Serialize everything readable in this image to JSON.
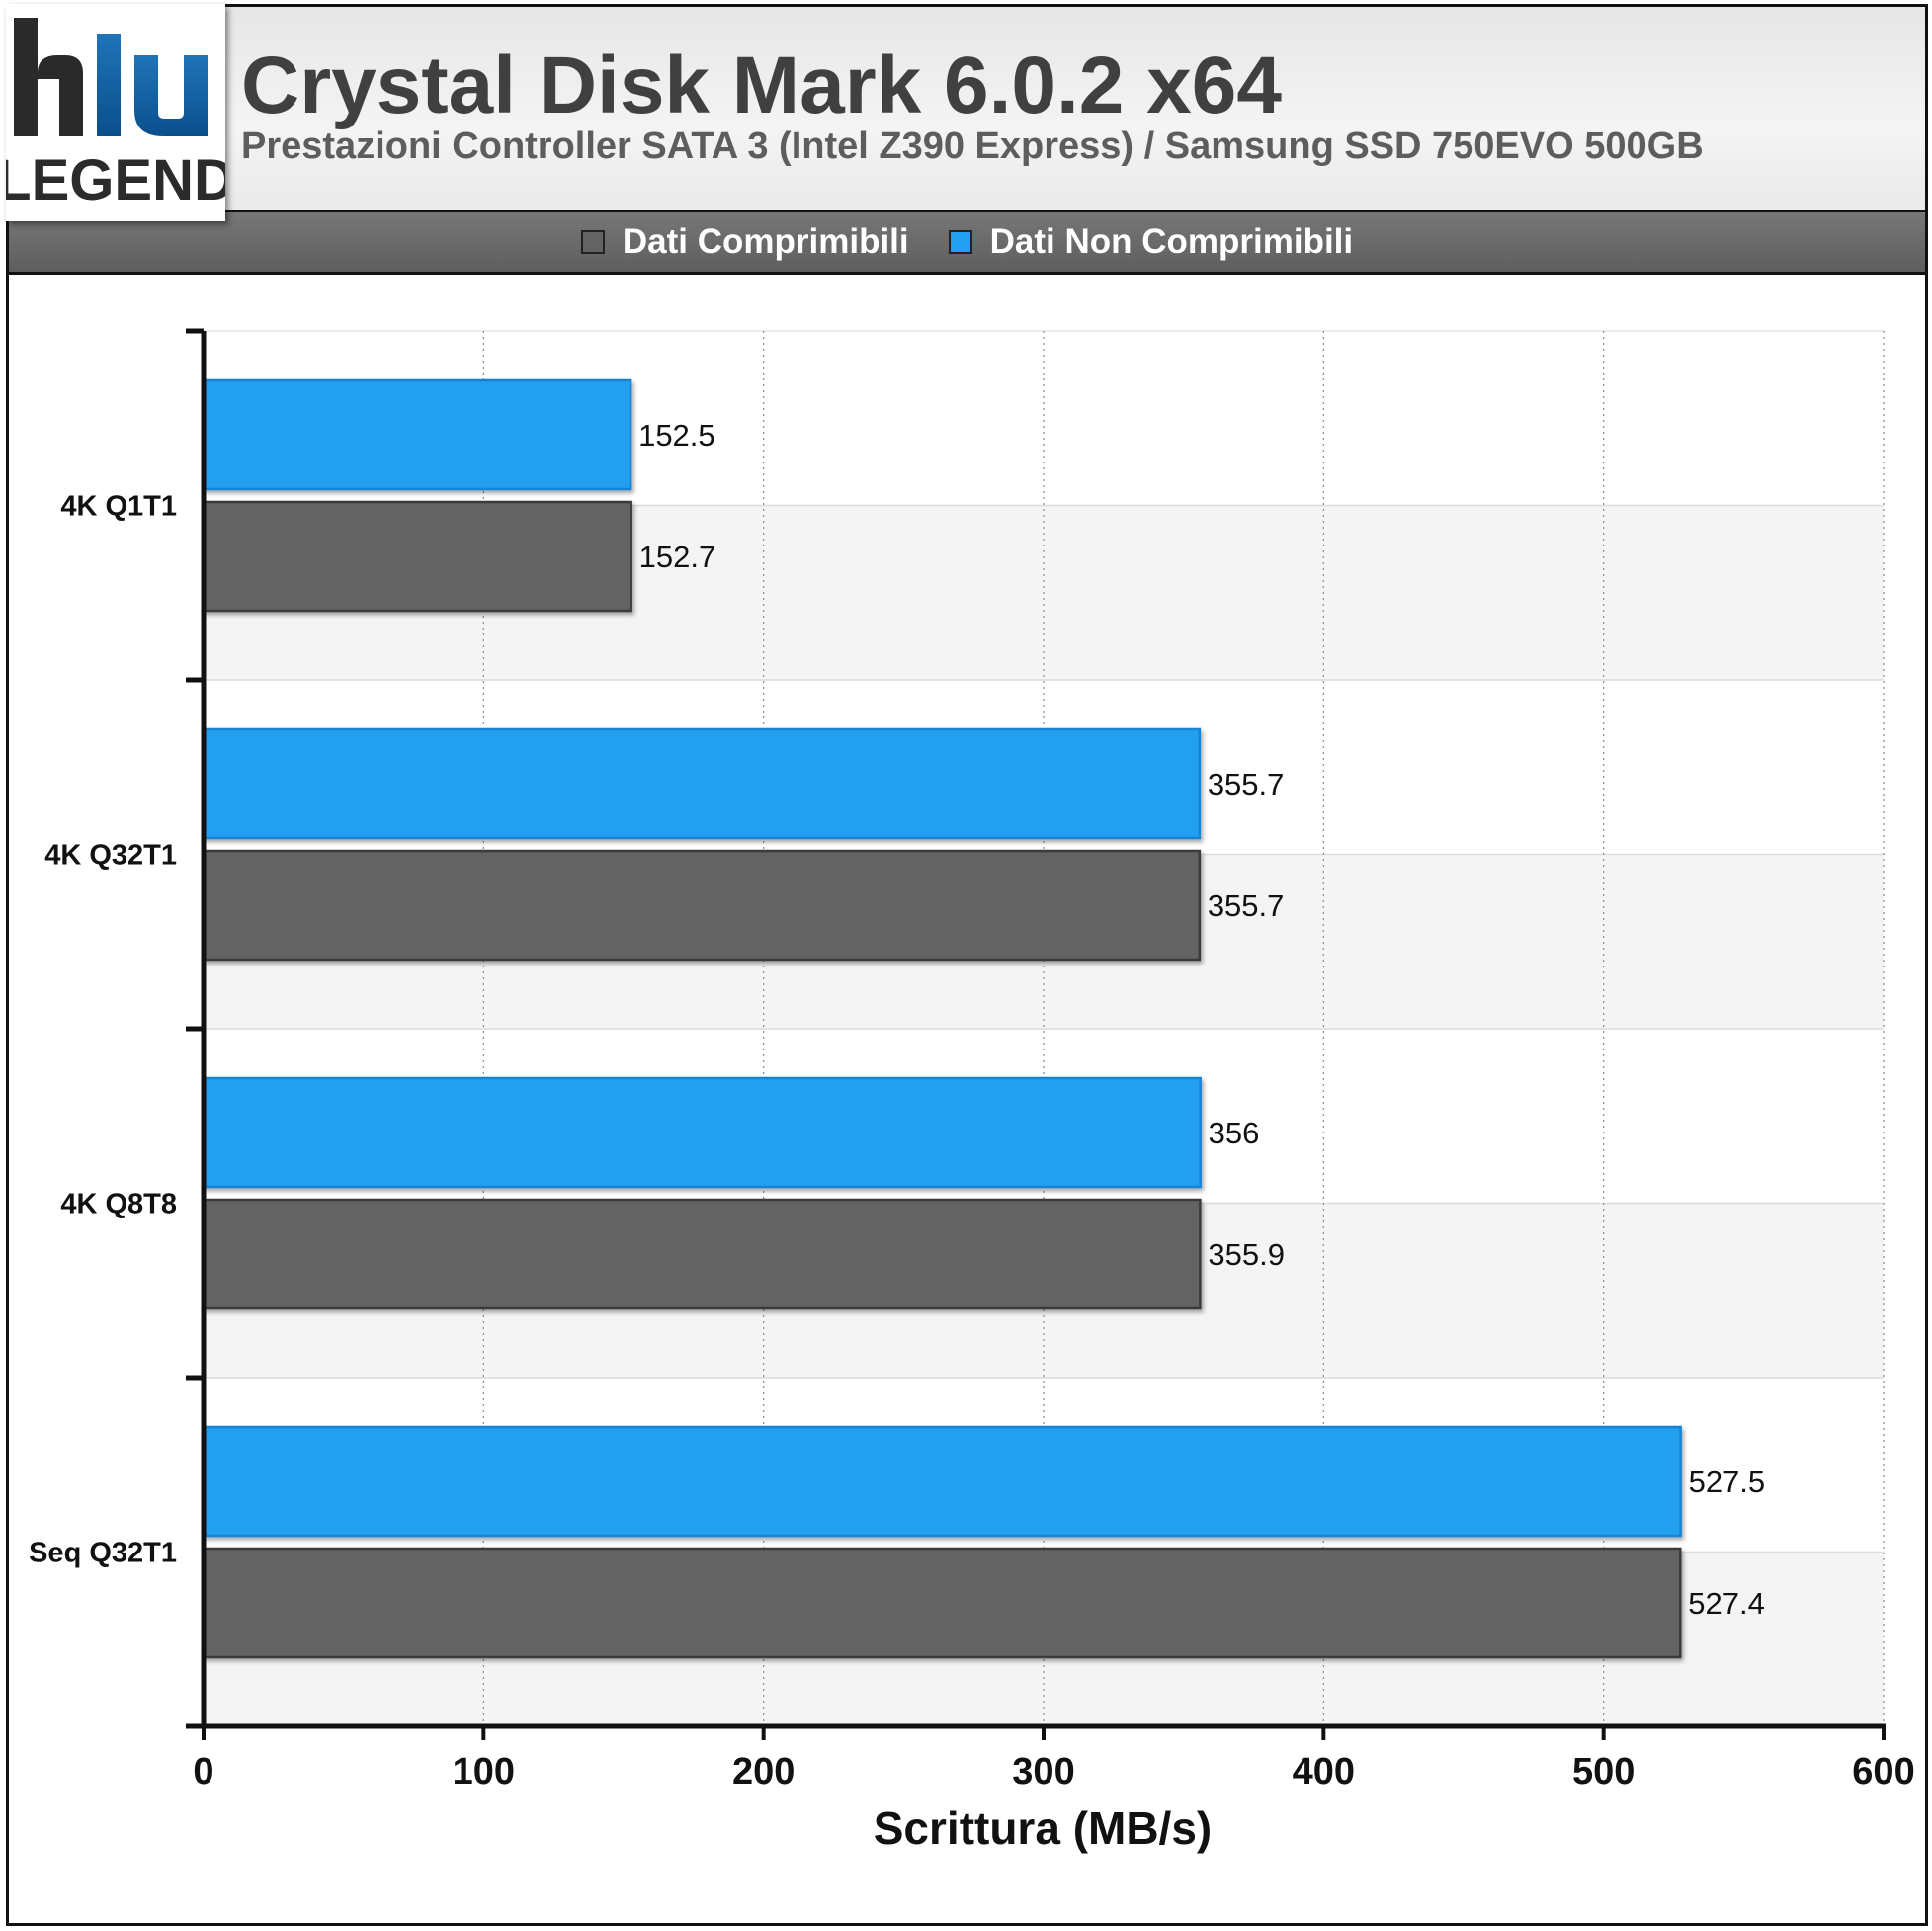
{
  "header": {
    "title": "Crystal Disk Mark 6.0.2 x64",
    "subtitle": "Prestazioni Controller SATA 3 (Intel Z390 Express) / Samsung SSD 750EVO 500GB",
    "logo_text": "LEGEND"
  },
  "legend": {
    "entries": [
      {
        "label": "Dati Comprimibili",
        "color": "#636363"
      },
      {
        "label": "Dati Non Comprimibili",
        "color": "#229fee"
      }
    ]
  },
  "chart_data": {
    "type": "bar",
    "orientation": "horizontal",
    "categories": [
      "4K Q1T1",
      "4K Q32T1",
      "4K Q8T8",
      "Seq Q32T1"
    ],
    "series": [
      {
        "name": "Dati Non Comprimibili",
        "color": "#229fee",
        "values": [
          152.5,
          355.7,
          356,
          527.5
        ]
      },
      {
        "name": "Dati Comprimibili",
        "color": "#636363",
        "values": [
          152.7,
          355.7,
          355.9,
          527.4
        ]
      }
    ],
    "value_labels": {
      "Dati Non Comprimibili": [
        "152.5",
        "355.7",
        "356",
        "527.5"
      ],
      "Dati Comprimibili": [
        "152.7",
        "355.7",
        "355.9",
        "527.4"
      ]
    },
    "xlabel": "Scrittura (MB/s)",
    "xlim": [
      0,
      600
    ],
    "xticks": [
      "0",
      "100",
      "200",
      "300",
      "400",
      "500",
      "600"
    ],
    "grid": "vertical dotted",
    "legend_position": "top"
  }
}
